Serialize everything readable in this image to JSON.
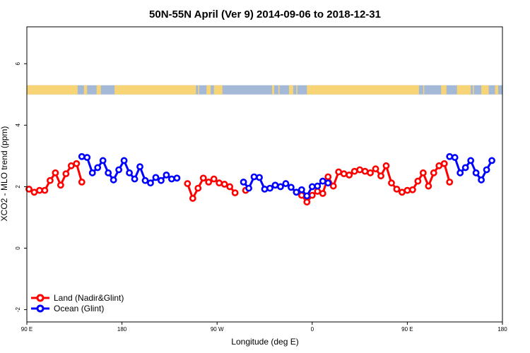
{
  "chart_data": {
    "type": "line",
    "title": "50N-55N April (Ver 9)   2014-09-06 to 2018-12-31",
    "xlabel": "Longitude (deg E)",
    "ylabel": "XCO2 - MLO trend (ppm)",
    "xlim": [
      90,
      540
    ],
    "ylim": [
      -2.4,
      7.2
    ],
    "x_ticks": [
      {
        "value": 90,
        "label": "90 E"
      },
      {
        "value": 180,
        "label": "180"
      },
      {
        "value": 270,
        "label": "90 W"
      },
      {
        "value": 360,
        "label": "0"
      },
      {
        "value": 450,
        "label": "90 E"
      },
      {
        "value": 540,
        "label": "180"
      }
    ],
    "y_ticks": [
      {
        "value": -2,
        "label": "-2"
      },
      {
        "value": 0,
        "label": "0"
      },
      {
        "value": 2,
        "label": "2"
      },
      {
        "value": 4,
        "label": "4"
      },
      {
        "value": 6,
        "label": "6"
      }
    ],
    "legend_position": "bottom-left",
    "land_ocean_strip": {
      "y_range": [
        5.0,
        5.3
      ],
      "land_color": "#f7d577",
      "ocean_color": "#a4b8d8",
      "land_segments": [
        [
          90,
          138
        ],
        [
          144,
          147
        ],
        [
          156,
          160
        ],
        [
          173,
          250
        ],
        [
          252,
          253
        ],
        [
          260,
          264
        ],
        [
          267,
          275
        ],
        [
          322,
          324
        ],
        [
          328,
          329
        ],
        [
          338,
          342
        ],
        [
          345,
          346
        ],
        [
          355,
          461
        ],
        [
          465,
          466
        ],
        [
          482,
          487
        ],
        [
          497,
          510
        ],
        [
          512,
          513
        ],
        [
          520,
          527
        ],
        [
          533,
          536
        ]
      ]
    },
    "series": [
      {
        "name": "Land (Nadir&Glint)",
        "color": "#ff0000",
        "segments": [
          [
            [
              92,
              1.92
            ],
            [
              97,
              1.82
            ],
            [
              102,
              1.88
            ],
            [
              107,
              1.88
            ],
            [
              112,
              2.2
            ],
            [
              117,
              2.45
            ],
            [
              122,
              2.05
            ],
            [
              127,
              2.42
            ],
            [
              132,
              2.68
            ],
            [
              137,
              2.75
            ],
            [
              142,
              2.15
            ]
          ],
          [
            [
              242,
              2.1
            ],
            [
              247,
              1.62
            ],
            [
              252,
              1.95
            ],
            [
              257,
              2.28
            ],
            [
              262,
              2.15
            ],
            [
              267,
              2.25
            ],
            [
              272,
              2.12
            ],
            [
              277,
              2.08
            ],
            [
              282,
              2.0
            ],
            [
              287,
              1.8
            ]
          ],
          [
            [
              297,
              1.88
            ]
          ],
          [
            [
              350,
              1.72
            ],
            [
              355,
              1.5
            ],
            [
              360,
              1.72
            ],
            [
              365,
              1.85
            ],
            [
              370,
              1.78
            ],
            [
              375,
              2.32
            ],
            [
              380,
              2.02
            ],
            [
              385,
              2.48
            ],
            [
              390,
              2.42
            ],
            [
              395,
              2.38
            ],
            [
              400,
              2.5
            ],
            [
              405,
              2.55
            ],
            [
              410,
              2.5
            ],
            [
              415,
              2.45
            ],
            [
              420,
              2.58
            ],
            [
              425,
              2.35
            ],
            [
              430,
              2.68
            ],
            [
              435,
              2.12
            ],
            [
              440,
              1.92
            ],
            [
              445,
              1.82
            ],
            [
              450,
              1.88
            ],
            [
              455,
              1.9
            ],
            [
              460,
              2.18
            ],
            [
              465,
              2.45
            ],
            [
              470,
              2.02
            ],
            [
              475,
              2.45
            ],
            [
              480,
              2.68
            ],
            [
              485,
              2.75
            ],
            [
              490,
              2.15
            ]
          ]
        ]
      },
      {
        "name": "Ocean (Glint)",
        "color": "#0000ff",
        "segments": [
          [
            [
              142,
              2.98
            ],
            [
              147,
              2.95
            ],
            [
              152,
              2.45
            ],
            [
              157,
              2.62
            ],
            [
              162,
              2.85
            ],
            [
              167,
              2.45
            ],
            [
              172,
              2.22
            ],
            [
              177,
              2.55
            ],
            [
              182,
              2.85
            ],
            [
              187,
              2.45
            ],
            [
              192,
              2.25
            ],
            [
              197,
              2.65
            ],
            [
              202,
              2.2
            ],
            [
              207,
              2.12
            ],
            [
              212,
              2.3
            ],
            [
              217,
              2.2
            ],
            [
              222,
              2.38
            ],
            [
              227,
              2.25
            ],
            [
              232,
              2.28
            ]
          ],
          [
            [
              295,
              2.15
            ],
            [
              300,
              1.95
            ],
            [
              305,
              2.32
            ],
            [
              310,
              2.3
            ],
            [
              315,
              1.92
            ],
            [
              320,
              1.95
            ],
            [
              325,
              2.05
            ],
            [
              330,
              2.0
            ],
            [
              335,
              2.1
            ],
            [
              340,
              1.98
            ],
            [
              345,
              1.82
            ],
            [
              350,
              1.9
            ],
            [
              355,
              1.7
            ],
            [
              360,
              2.0
            ],
            [
              365,
              2.02
            ],
            [
              370,
              2.18
            ],
            [
              375,
              2.12
            ]
          ],
          [
            [
              490,
              2.98
            ],
            [
              495,
              2.95
            ],
            [
              500,
              2.45
            ],
            [
              505,
              2.62
            ],
            [
              510,
              2.85
            ],
            [
              515,
              2.45
            ],
            [
              520,
              2.22
            ],
            [
              525,
              2.55
            ],
            [
              530,
              2.85
            ]
          ]
        ]
      }
    ]
  }
}
